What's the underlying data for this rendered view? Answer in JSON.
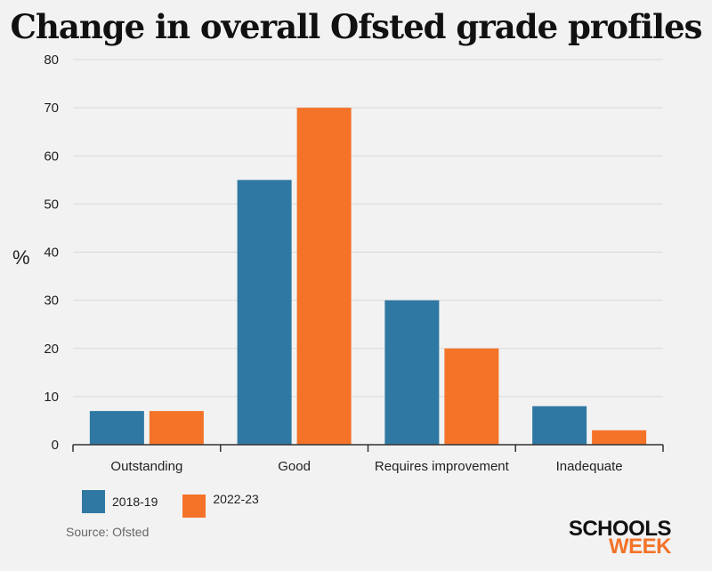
{
  "chart_data": {
    "type": "bar",
    "title": "Change in overall Ofsted grade profiles",
    "xlabel": "",
    "ylabel": "%",
    "ylim": [
      0,
      80
    ],
    "yticks": [
      0,
      10,
      20,
      30,
      40,
      50,
      60,
      70,
      80
    ],
    "yticks_labels": [
      "0",
      "10",
      "20",
      "30",
      "40",
      "50",
      "60",
      "70",
      "80"
    ],
    "categories": [
      "Outstanding",
      "Good",
      "Requires improvement",
      "Inadequate"
    ],
    "series": [
      {
        "name": "2018-19",
        "values": [
          7,
          55,
          30,
          8
        ],
        "color": "#2f78a3"
      },
      {
        "name": "2022-23",
        "values": [
          7,
          70,
          20,
          3
        ],
        "color": "#f47328"
      }
    ],
    "grid": true,
    "legend": "bottom-left"
  },
  "source": "Source: Ofsted",
  "logo": {
    "line1": "SCHOOLS",
    "line2": "WEEK"
  },
  "colors": {
    "background": "#f2f2f2",
    "grid": "#d9d9d9",
    "series1": "#2f78a3",
    "series2": "#f47328"
  }
}
